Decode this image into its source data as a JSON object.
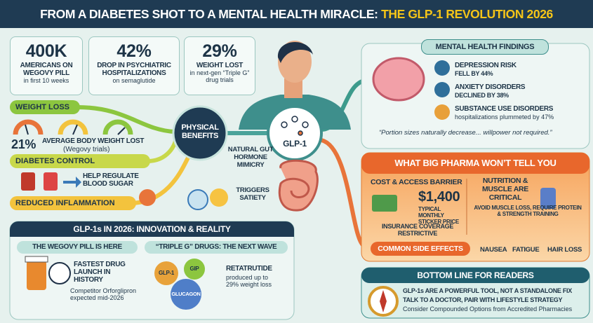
{
  "header": {
    "title": "FROM A DIABETES SHOT TO A MENTAL HEALTH MIRACLE: ",
    "highlight": "THE GLP-1 REVOLUTION 2026"
  },
  "stats": [
    {
      "value": "400K",
      "label": "AMERICANS ON WEGOVY PILL",
      "note": "in first 10 weeks"
    },
    {
      "value": "42%",
      "label": "DROP IN PSYCHIATRIC HOSPITALIZATIONS",
      "note": "on semaglutide"
    },
    {
      "value": "29%",
      "label": "WEIGHT LOST",
      "note": "in next-gen “Triple G” drug trials"
    }
  ],
  "physical_benefits": {
    "hub": "PHYSICAL BENEFITS",
    "weight_loss": {
      "title": "WEIGHT LOSS",
      "value": "21%",
      "label": "AVERAGE BODY WEIGHT LOST",
      "note": "(Wegovy trials)"
    },
    "diabetes_control": {
      "title": "DIABETES CONTROL",
      "label": "HELP REGULATE BLOOD SUGAR"
    },
    "inflammation": {
      "title": "REDUCED INFLAMMATION"
    }
  },
  "center": {
    "hormone": "GLP-1",
    "mimicry": "NATURAL GUT HORMONE MIMICRY",
    "satiety": "TRIGGERS SATIETY"
  },
  "mental_health": {
    "title": "MENTAL HEALTH FINDINGS",
    "findings": [
      {
        "title": "DEPRESSION RISK",
        "detail": "FELL BY 44%"
      },
      {
        "title": "ANXIETY DISORDERS",
        "detail": "DECLINED BY 38%"
      },
      {
        "title": "SUBSTANCE USE DISORDERS",
        "detail": "hospitalizations plummeted by 47%"
      }
    ],
    "quote": "“Portion sizes naturally decrease... willpower not required.”"
  },
  "pharma": {
    "title": "WHAT BIG PHARMA WON’T TELL YOU",
    "cost": {
      "title": "COST & ACCESS BARRIER",
      "price": "$1,400",
      "price_label": "TYPICAL MONTHLY STICKER PRICE",
      "insurance": "INSURANCE COVERAGE RESTRICTIVE"
    },
    "nutrition": {
      "title": "NUTRITION & MUSCLE ARE CRITICAL",
      "detail": "AVOID MUSCLE LOSS, REQUIRE PROTEIN & STRENGTH TRAINING"
    },
    "side_effects": {
      "title": "COMMON SIDE EFFECTS",
      "items": [
        "NAUSEA",
        "FATIGUE",
        "HAIR LOSS"
      ]
    }
  },
  "innovation": {
    "title": "GLP-1s IN 2026: INNOVATION & REALITY",
    "pill": {
      "title": "THE WEGOVY PILL IS HERE",
      "headline": "FASTEST DRUG LAUNCH IN HISTORY",
      "note": "Competitor Orforglipron expected mid-2026"
    },
    "triple_g": {
      "title": "“TRIPLE G” DRUGS: THE NEXT WAVE",
      "gears": [
        "GLP-1",
        "GIP",
        "GLUCAGON"
      ],
      "drug": "RETATRUTIDE",
      "note": "produced up to 29% weight loss"
    }
  },
  "bottom_line": {
    "title": "BOTTOM LINE FOR READERS",
    "lines": [
      "GLP-1s ARE A POWERFUL TOOL, NOT A STANDALONE FIX",
      "TALK TO A DOCTOR, PAIR WITH LIFESTYLE STRATEGY",
      "Consider Compounded Options from Accredited Pharmacies"
    ]
  }
}
